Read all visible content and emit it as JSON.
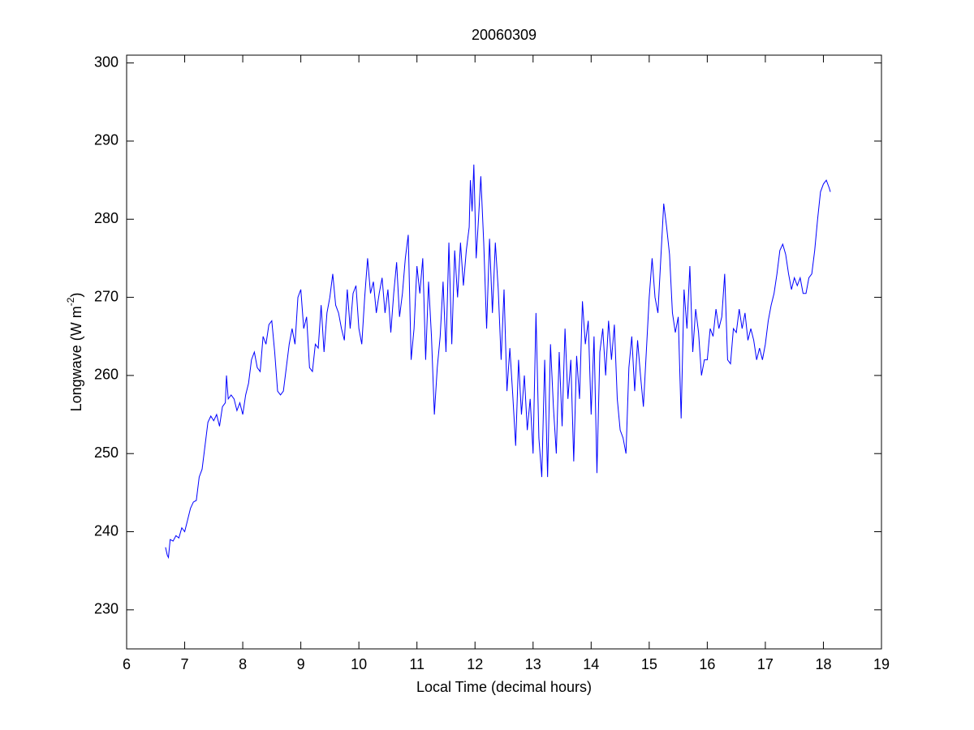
{
  "chart_data": {
    "type": "line",
    "title": "20060309",
    "xlabel": "Local Time (decimal hours)",
    "ylabel": [
      "Longwave (W m",
      "-2",
      ")"
    ],
    "xlim": [
      6,
      19
    ],
    "xticks": [
      6,
      7,
      8,
      9,
      10,
      11,
      12,
      13,
      14,
      15,
      16,
      17,
      18,
      19
    ],
    "ylim": [
      225,
      301
    ],
    "yticks": [
      230,
      240,
      250,
      260,
      270,
      280,
      290,
      300
    ],
    "grid": false,
    "series": [
      {
        "color": "#0000ff",
        "x": [
          6.67,
          6.7,
          6.72,
          6.75,
          6.8,
          6.85,
          6.9,
          6.95,
          7.0,
          7.05,
          7.1,
          7.15,
          7.2,
          7.25,
          7.3,
          7.35,
          7.4,
          7.45,
          7.5,
          7.55,
          7.6,
          7.65,
          7.7,
          7.72,
          7.75,
          7.8,
          7.85,
          7.9,
          7.95,
          8.0,
          8.05,
          8.1,
          8.15,
          8.2,
          8.25,
          8.3,
          8.35,
          8.4,
          8.45,
          8.5,
          8.55,
          8.6,
          8.65,
          8.7,
          8.75,
          8.8,
          8.85,
          8.9,
          8.95,
          9.0,
          9.05,
          9.1,
          9.15,
          9.2,
          9.25,
          9.3,
          9.35,
          9.4,
          9.45,
          9.5,
          9.55,
          9.6,
          9.65,
          9.7,
          9.75,
          9.8,
          9.85,
          9.9,
          9.95,
          10.0,
          10.05,
          10.1,
          10.15,
          10.2,
          10.25,
          10.3,
          10.35,
          10.4,
          10.45,
          10.5,
          10.55,
          10.6,
          10.65,
          10.7,
          10.75,
          10.8,
          10.85,
          10.9,
          10.95,
          11.0,
          11.05,
          11.1,
          11.15,
          11.2,
          11.25,
          11.3,
          11.35,
          11.4,
          11.45,
          11.5,
          11.55,
          11.6,
          11.65,
          11.7,
          11.75,
          11.8,
          11.85,
          11.9,
          11.92,
          11.95,
          11.98,
          12.02,
          12.06,
          12.1,
          12.15,
          12.2,
          12.25,
          12.3,
          12.35,
          12.4,
          12.45,
          12.5,
          12.55,
          12.6,
          12.65,
          12.7,
          12.75,
          12.8,
          12.85,
          12.9,
          12.95,
          13.0,
          13.05,
          13.1,
          13.15,
          13.2,
          13.25,
          13.3,
          13.35,
          13.4,
          13.45,
          13.5,
          13.55,
          13.6,
          13.65,
          13.7,
          13.75,
          13.8,
          13.85,
          13.9,
          13.95,
          14.0,
          14.05,
          14.1,
          14.15,
          14.2,
          14.25,
          14.3,
          14.35,
          14.4,
          14.45,
          14.5,
          14.55,
          14.6,
          14.65,
          14.7,
          14.75,
          14.8,
          14.85,
          14.9,
          14.95,
          15.0,
          15.05,
          15.1,
          15.15,
          15.2,
          15.25,
          15.3,
          15.35,
          15.4,
          15.45,
          15.5,
          15.55,
          15.6,
          15.65,
          15.7,
          15.75,
          15.8,
          15.85,
          15.9,
          15.95,
          16.0,
          16.05,
          16.1,
          16.15,
          16.2,
          16.25,
          16.3,
          16.35,
          16.4,
          16.45,
          16.5,
          16.55,
          16.6,
          16.65,
          16.7,
          16.75,
          16.8,
          16.85,
          16.9,
          16.95,
          17.0,
          17.05,
          17.1,
          17.15,
          17.2,
          17.25,
          17.3,
          17.35,
          17.4,
          17.45,
          17.5,
          17.55,
          17.6,
          17.65,
          17.7,
          17.75,
          17.8,
          17.85,
          17.9,
          17.95,
          18.0,
          18.05,
          18.1,
          18.12
        ],
        "values": [
          238,
          237,
          236.7,
          239,
          238.8,
          239.5,
          239.2,
          240.5,
          240,
          241.5,
          243,
          243.8,
          244,
          247,
          248,
          251,
          254,
          254.8,
          254.2,
          255,
          253.5,
          256,
          256.5,
          260,
          257,
          257.5,
          257,
          255.5,
          256.5,
          255,
          257.5,
          259,
          262,
          263,
          261,
          260.5,
          265,
          264,
          266.5,
          267,
          263,
          258,
          257.5,
          258,
          261,
          264,
          266,
          264,
          270,
          271,
          266,
          267.5,
          261,
          260.5,
          264,
          263.5,
          269,
          263,
          268,
          270,
          273,
          269,
          268,
          266,
          264.5,
          271,
          266,
          270.5,
          271.5,
          266,
          264,
          270,
          275,
          270.5,
          272,
          268,
          270.5,
          272.5,
          268,
          271,
          265.5,
          270.5,
          274.5,
          267.5,
          270.5,
          275,
          278,
          262,
          266,
          274,
          270.5,
          275,
          262,
          272,
          265,
          255,
          261,
          265,
          272,
          263,
          277,
          264,
          276,
          270,
          277,
          271.5,
          276,
          279,
          285,
          281,
          287,
          275,
          280,
          285.5,
          277,
          266,
          277.5,
          268,
          277,
          271,
          262,
          271,
          258,
          263.5,
          257.5,
          251,
          262,
          255,
          260,
          253,
          257,
          250,
          268,
          252,
          247,
          262,
          247,
          264,
          256,
          250,
          263,
          253.5,
          266,
          257,
          262,
          249,
          262.5,
          257,
          269.5,
          264,
          267,
          255,
          265,
          247.5,
          263,
          266,
          260,
          267,
          262,
          266.5,
          257,
          253,
          252,
          250,
          261,
          265,
          258,
          264.5,
          260,
          256,
          263,
          270,
          275,
          270,
          268,
          275,
          282,
          279,
          275.5,
          268,
          265.5,
          267.5,
          254.5,
          271,
          266,
          274,
          263,
          268.5,
          265.5,
          260,
          262,
          262,
          266,
          265,
          268.5,
          266,
          267.5,
          273,
          262,
          261.5,
          266,
          265.5,
          268.5,
          266,
          268,
          264.5,
          266,
          264.5,
          262,
          263.5,
          262,
          264,
          267,
          269,
          270.5,
          273,
          276,
          276.8,
          275.5,
          273,
          271,
          272.5,
          271.5,
          272.5,
          270.5,
          270.5,
          272.5,
          273,
          276,
          280,
          283.5,
          284.5,
          285,
          284,
          283.5
        ]
      }
    ]
  }
}
